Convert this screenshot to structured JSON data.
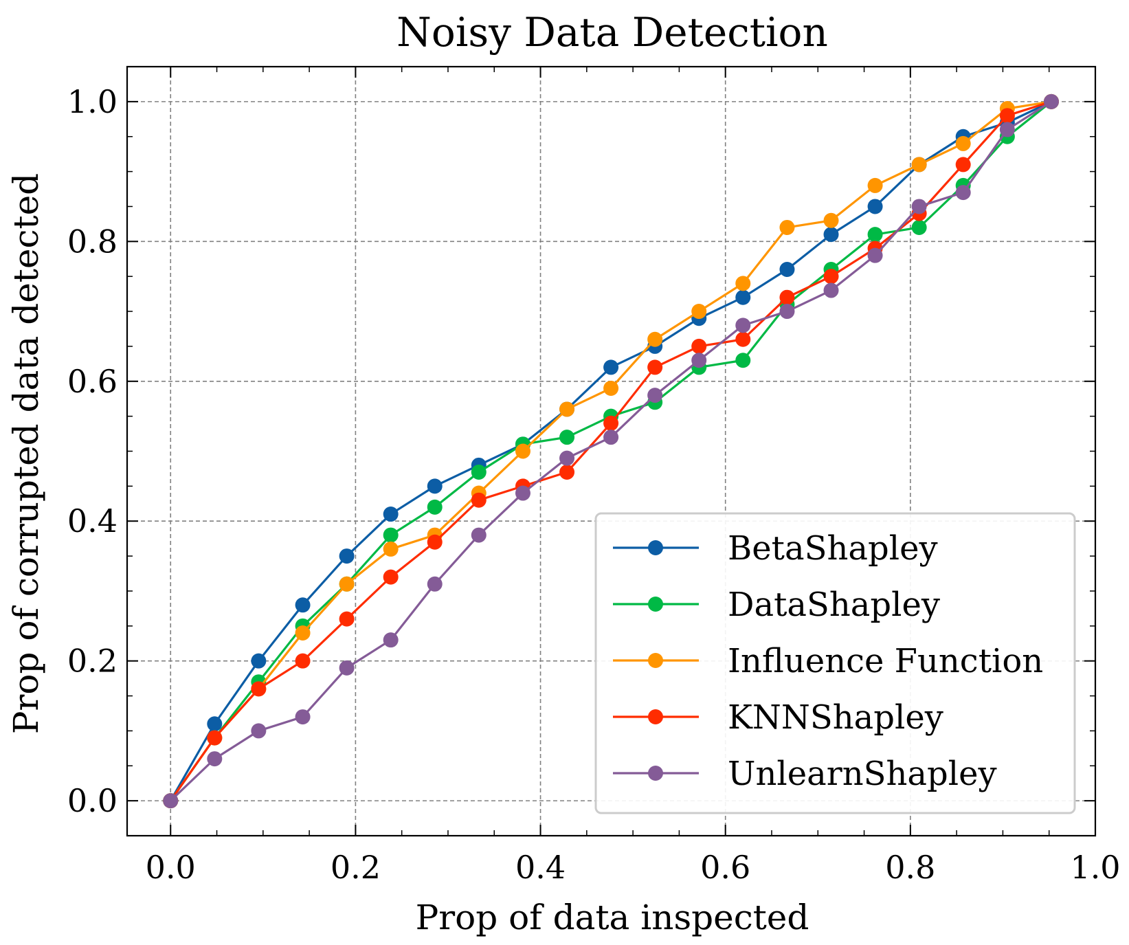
{
  "chart_data": {
    "type": "line",
    "title": "Noisy Data Detection",
    "xlabel": "Prop of data inspected",
    "ylabel": "Prop of corrupted data detected",
    "xlim": [
      -0.047,
      1.0
    ],
    "ylim": [
      -0.05,
      1.05
    ],
    "xticks": [
      0.0,
      0.2,
      0.4,
      0.6,
      0.8,
      1.0
    ],
    "xtick_labels": [
      "0.0",
      "0.2",
      "0.4",
      "0.6",
      "0.8",
      "1.0"
    ],
    "yticks": [
      0.0,
      0.2,
      0.4,
      0.6,
      0.8,
      1.0
    ],
    "ytick_labels": [
      "0.0",
      "0.2",
      "0.4",
      "0.6",
      "0.8",
      "1.0"
    ],
    "grid": true,
    "legend_position": "lower-right",
    "x": [
      0.0,
      0.0476,
      0.0952,
      0.1429,
      0.1905,
      0.2381,
      0.2857,
      0.3333,
      0.381,
      0.4286,
      0.4762,
      0.5238,
      0.5714,
      0.619,
      0.6667,
      0.7143,
      0.7619,
      0.8095,
      0.8571,
      0.9048,
      0.9524
    ],
    "series": [
      {
        "name": "BetaShapley",
        "color": "#0C5DA5",
        "values": [
          0.0,
          0.11,
          0.2,
          0.28,
          0.35,
          0.41,
          0.45,
          0.48,
          0.51,
          0.56,
          0.62,
          0.65,
          0.69,
          0.72,
          0.76,
          0.81,
          0.85,
          0.91,
          0.95,
          0.97,
          1.0
        ]
      },
      {
        "name": "DataShapley",
        "color": "#00B945",
        "values": [
          0.0,
          0.09,
          0.17,
          0.25,
          0.31,
          0.38,
          0.42,
          0.47,
          0.51,
          0.52,
          0.55,
          0.57,
          0.62,
          0.63,
          0.71,
          0.76,
          0.81,
          0.82,
          0.88,
          0.95,
          1.0
        ]
      },
      {
        "name": "Influence Function",
        "color": "#FF9500",
        "values": [
          0.0,
          0.09,
          0.16,
          0.24,
          0.31,
          0.36,
          0.38,
          0.44,
          0.5,
          0.56,
          0.59,
          0.66,
          0.7,
          0.74,
          0.82,
          0.83,
          0.88,
          0.91,
          0.94,
          0.99,
          1.0
        ]
      },
      {
        "name": "KNNShapley",
        "color": "#FF2C00",
        "values": [
          0.0,
          0.09,
          0.16,
          0.2,
          0.26,
          0.32,
          0.37,
          0.43,
          0.45,
          0.47,
          0.54,
          0.62,
          0.65,
          0.66,
          0.72,
          0.75,
          0.79,
          0.84,
          0.91,
          0.98,
          1.0
        ]
      },
      {
        "name": "UnlearnShapley",
        "color": "#845B97",
        "values": [
          0.0,
          0.06,
          0.1,
          0.12,
          0.19,
          0.23,
          0.31,
          0.38,
          0.44,
          0.49,
          0.52,
          0.58,
          0.63,
          0.68,
          0.7,
          0.73,
          0.78,
          0.85,
          0.87,
          0.96,
          1.0
        ]
      }
    ]
  }
}
